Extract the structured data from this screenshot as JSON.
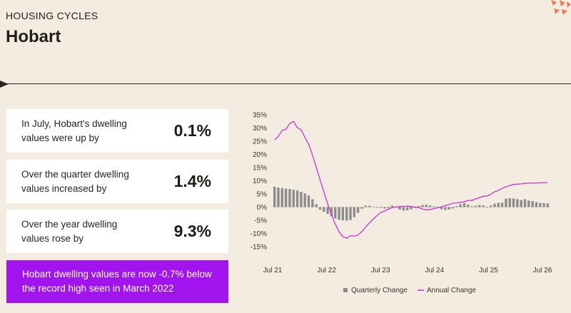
{
  "header": {
    "section_label": "HOUSING CYCLES",
    "title": "Hobart"
  },
  "stats": [
    {
      "label": "In July, Hobart's dwelling values were up by",
      "value": "0.1%"
    },
    {
      "label": "Over the quarter dwelling values increased by",
      "value": "1.4%"
    },
    {
      "label": "Over the year dwelling values rose by",
      "value": "9.3%"
    }
  ],
  "callout": {
    "text": "Hobart dwelling values are now -0.7% below the record high seen in March 2022"
  },
  "colors": {
    "background": "#f4ece1",
    "quarterly_bar": "#8c8c8c",
    "annual_line": "#cc33cc",
    "callout_bg": "#a114ee"
  },
  "chart_data": {
    "type": "bar",
    "title": "",
    "ylim": [
      -15,
      35
    ],
    "yticks": [
      "35%",
      "30%",
      "25%",
      "20%",
      "15%",
      "10%",
      "5%",
      "0%",
      "-5%",
      "-10%",
      "-15%"
    ],
    "xticks": [
      "Jul 21",
      "Jul 22",
      "Jul 23",
      "Jul 24",
      "Jul 25",
      "Jul 26"
    ],
    "legend": [
      "Quarterly Change",
      "Annual Change"
    ],
    "legend_position": "bottom",
    "grid": false,
    "series": [
      {
        "name": "Quarterly Change",
        "type": "bar",
        "values": [
          7.8,
          7.4,
          7.2,
          7.0,
          6.9,
          6.6,
          6.3,
          5.8,
          5.2,
          4.4,
          3.0,
          1.1,
          -1.0,
          -1.8,
          -2.6,
          -3.5,
          -4.3,
          -4.8,
          -5.0,
          -5.1,
          -4.9,
          -3.8,
          -2.2,
          -0.6,
          0.6,
          0.5,
          0.2,
          -0.2,
          -0.3,
          -0.5,
          -0.4,
          0.6,
          -0.2,
          -0.9,
          -1.3,
          -1.2,
          -0.8,
          -0.3,
          0.4,
          0.8,
          0.9,
          0.6,
          0.3,
          -0.4,
          -0.8,
          -1.1,
          -0.9,
          -0.5,
          0.4,
          1.1,
          1.5,
          0.9,
          0.3,
          0.5,
          0.8,
          0.6,
          -0.2,
          0.6,
          1.3,
          1.6,
          1.7,
          3.2,
          3.4,
          3.3,
          3.0,
          2.7,
          3.0,
          2.5,
          2.3,
          1.9,
          1.6,
          1.5,
          1.4
        ]
      },
      {
        "name": "Annual Change",
        "type": "line",
        "values": [
          25.5,
          26.8,
          29.1,
          29.5,
          31.7,
          32.5,
          30.2,
          29.3,
          26.4,
          23.8,
          19.8,
          15.1,
          10.4,
          5.8,
          1.2,
          -2.8,
          -6.4,
          -9.3,
          -11.2,
          -11.8,
          -10.8,
          -11.0,
          -10.6,
          -9.3,
          -7.6,
          -6.0,
          -4.6,
          -3.2,
          -2.0,
          -1.5,
          -0.8,
          -0.2,
          0.1,
          0.2,
          0.3,
          0.4,
          0.2,
          0.0,
          -0.2,
          -0.7,
          -1.0,
          -0.9,
          -0.6,
          -0.2,
          0.1,
          0.6,
          1.0,
          1.5,
          1.6,
          1.8,
          2.0,
          2.6,
          2.5,
          3.1,
          3.6,
          4.1,
          4.2,
          4.9,
          5.8,
          6.3,
          7.1,
          7.7,
          8.2,
          8.6,
          8.7,
          8.8,
          9.0,
          9.1,
          9.1,
          9.2,
          9.2,
          9.3,
          9.3
        ]
      }
    ]
  }
}
